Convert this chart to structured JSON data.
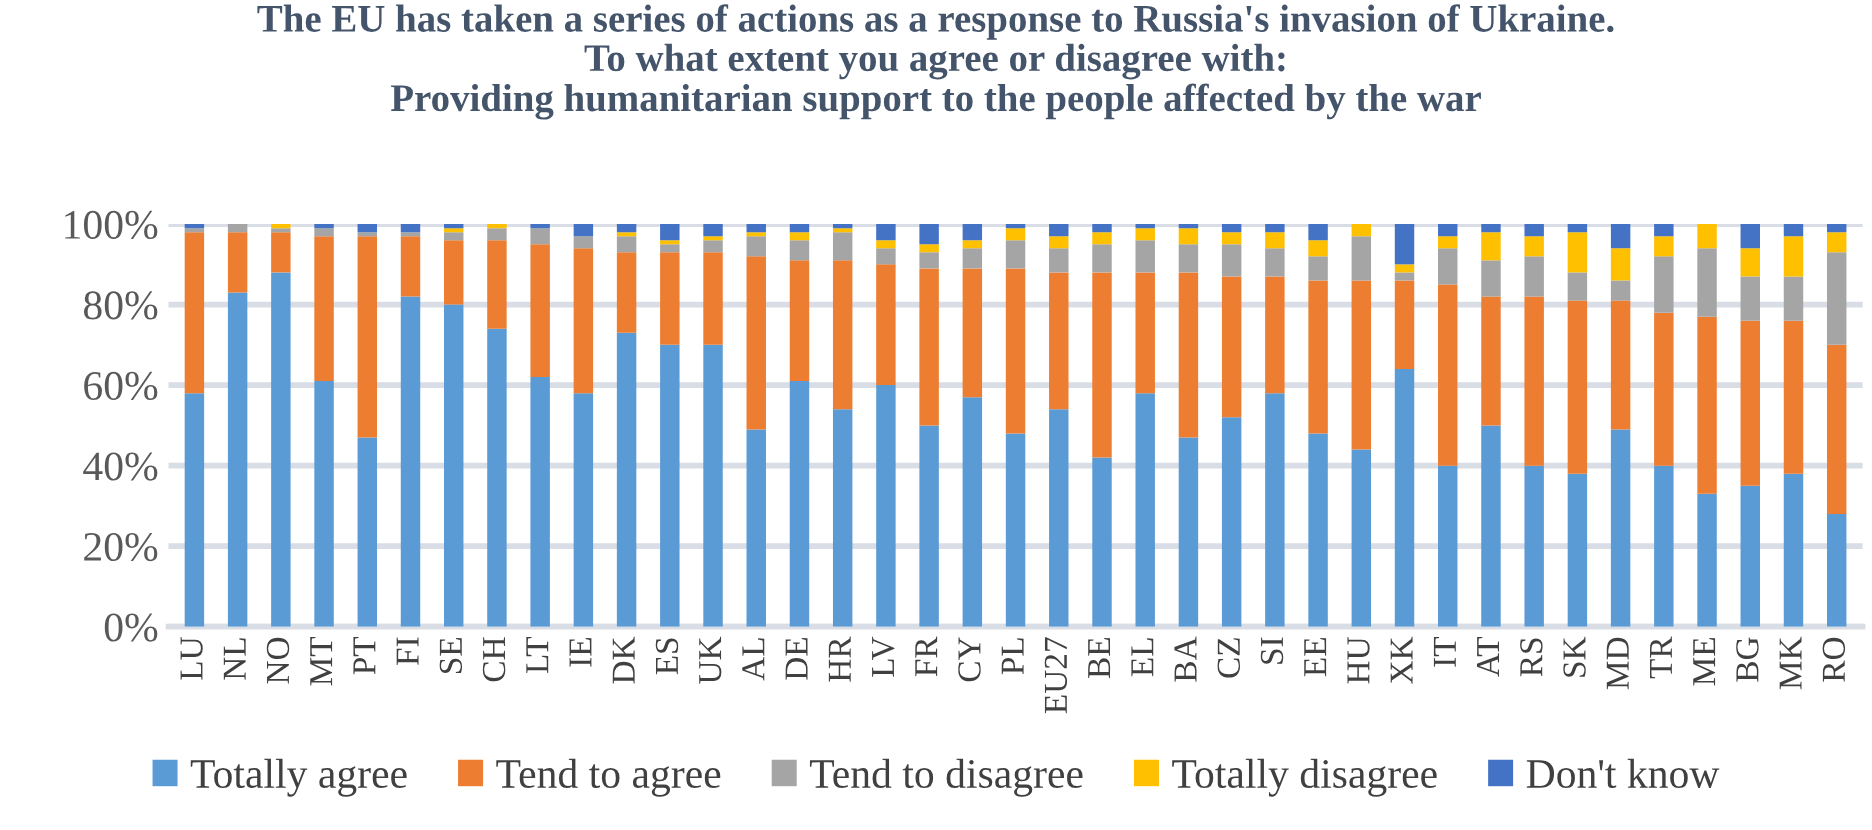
{
  "chart_data": {
    "type": "bar",
    "stacked": true,
    "title": "The EU has taken a series of actions as a response to Russia's invasion of Ukraine.\nTo what extent you agree or disagree with:\nProviding humanitarian support to the people affected by the war",
    "categories": [
      "LU",
      "NL",
      "NO",
      "MT",
      "PT",
      "FI",
      "SE",
      "CH",
      "LT",
      "IE",
      "DK",
      "ES",
      "UK",
      "AL",
      "DE",
      "HR",
      "LV",
      "FR",
      "CY",
      "PL",
      "EU27",
      "BE",
      "EL",
      "BA",
      "CZ",
      "SI",
      "EE",
      "HU",
      "XK",
      "IT",
      "AT",
      "RS",
      "SK",
      "MD",
      "TR",
      "ME",
      "BG",
      "MK",
      "RO"
    ],
    "series": [
      {
        "name": "Totally agree",
        "color": "#5b9bd5",
        "values": [
          58,
          83,
          88,
          61,
          47,
          82,
          80,
          74,
          62,
          58,
          73,
          70,
          70,
          49,
          61,
          54,
          60,
          50,
          57,
          48,
          54,
          42,
          58,
          47,
          52,
          58,
          48,
          44,
          64,
          40,
          50,
          40,
          38,
          49,
          40,
          33,
          35,
          38,
          28
        ]
      },
      {
        "name": "Tend to agree",
        "color": "#ed7d31",
        "values": [
          40,
          15,
          10,
          36,
          50,
          15,
          16,
          22,
          33,
          36,
          20,
          23,
          23,
          43,
          30,
          37,
          30,
          39,
          32,
          41,
          34,
          46,
          30,
          41,
          35,
          29,
          38,
          42,
          22,
          45,
          32,
          42,
          43,
          32,
          38,
          44,
          41,
          38,
          42
        ]
      },
      {
        "name": "Tend to disagree",
        "color": "#a5a5a5",
        "values": [
          1,
          2,
          1,
          2,
          1,
          1,
          2,
          3,
          4,
          3,
          4,
          2,
          3,
          5,
          5,
          7,
          4,
          4,
          5,
          7,
          6,
          7,
          8,
          7,
          8,
          7,
          6,
          11,
          2,
          9,
          9,
          10,
          7,
          5,
          14,
          17,
          11,
          11,
          23
        ]
      },
      {
        "name": "Totally disagree",
        "color": "#ffc000",
        "values": [
          0,
          0,
          1,
          0,
          0,
          0,
          1,
          1,
          0,
          0,
          1,
          1,
          1,
          1,
          2,
          1,
          2,
          2,
          2,
          3,
          3,
          3,
          3,
          4,
          3,
          4,
          4,
          3,
          2,
          3,
          7,
          5,
          10,
          8,
          5,
          6,
          7,
          10,
          5
        ]
      },
      {
        "name": "Don't know",
        "color": "#4472c4",
        "values": [
          1,
          0,
          0,
          1,
          2,
          2,
          1,
          0,
          1,
          3,
          2,
          4,
          3,
          2,
          2,
          1,
          4,
          5,
          4,
          1,
          3,
          2,
          1,
          1,
          2,
          2,
          4,
          0,
          10,
          3,
          2,
          3,
          2,
          6,
          3,
          0,
          6,
          3,
          2
        ]
      }
    ],
    "ylim": [
      0,
      100
    ],
    "yticks": [
      {
        "value": 0,
        "label": "0%"
      },
      {
        "value": 20,
        "label": "20%"
      },
      {
        "value": 40,
        "label": "40%"
      },
      {
        "value": 60,
        "label": "60%"
      },
      {
        "value": 80,
        "label": "80%"
      },
      {
        "value": 100,
        "label": "100%"
      }
    ],
    "grid": "y",
    "legend": "bottom"
  }
}
